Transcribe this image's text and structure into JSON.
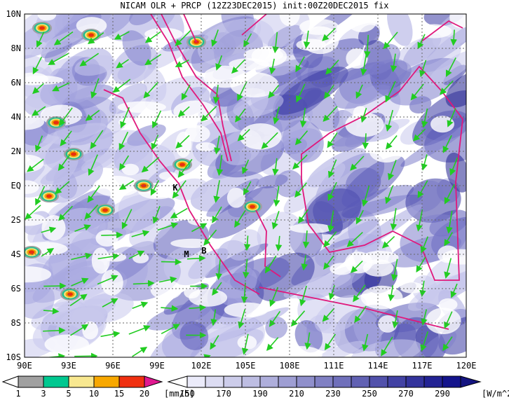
{
  "title": "NICAM OLR + PRCP (12Z23DEC2015) init:00Z20DEC2015 fix",
  "map": {
    "lat_labels": [
      "10N",
      "8N",
      "6N",
      "4N",
      "2N",
      "EQ",
      "2S",
      "4S",
      "6S",
      "8S",
      "10S"
    ],
    "lon_labels": [
      "90E",
      "93E",
      "96E",
      "99E",
      "102E",
      "105E",
      "108E",
      "111E",
      "114E",
      "117E",
      "120E"
    ],
    "places": [
      "K",
      "M",
      "B"
    ]
  },
  "legend": {
    "precip": {
      "levels": [
        1,
        3,
        5,
        10,
        15,
        20
      ],
      "unit": "[mm/h]"
    },
    "olr": {
      "levels": [
        150,
        170,
        190,
        210,
        230,
        250,
        270,
        290
      ],
      "unit": "[W/m^2]"
    }
  }
}
